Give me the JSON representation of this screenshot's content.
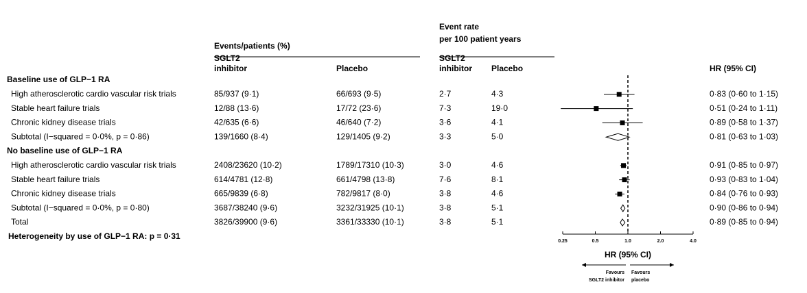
{
  "chart_data": {
    "type": "forest",
    "columns": {
      "events_title": "Events/patients (%)",
      "rate_title": [
        "Event rate",
        "per 100 patient years"
      ],
      "sglt2": [
        "SGLT2",
        "inhibitor"
      ],
      "placebo": "Placebo",
      "hr": "HR (95% CI)"
    },
    "rows": [
      {
        "kind": "section",
        "label": "Baseline use of GLP−1 RA"
      },
      {
        "kind": "study",
        "label": "High atherosclerotic cardio vascular risk trials",
        "events_sglt2": "85/937 (9·1)",
        "events_placebo": "66/693 (9·5)",
        "rate_sglt2": "2·7",
        "rate_placebo": "4·3",
        "hr": 0.83,
        "lo": 0.6,
        "hi": 1.15,
        "value_label": "0·83 (0·60 to 1·15)"
      },
      {
        "kind": "study",
        "label": "Stable heart failure trials",
        "events_sglt2": "12/88 (13·6)",
        "events_placebo": "17/72 (23·6)",
        "rate_sglt2": "7·3",
        "rate_placebo": "19·0",
        "hr": 0.51,
        "lo": 0.24,
        "hi": 1.11,
        "value_label": "0·51 (0·24 to 1·11)"
      },
      {
        "kind": "study",
        "label": "Chronic kidney disease trials",
        "events_sglt2": "42/635 (6·6)",
        "events_placebo": "46/640 (7·2)",
        "rate_sglt2": "3·6",
        "rate_placebo": "4·1",
        "hr": 0.89,
        "lo": 0.58,
        "hi": 1.37,
        "value_label": "0·89 (0·58 to 1·37)"
      },
      {
        "kind": "summary",
        "label": "Subtotal (I−squared = 0·0%, p = 0·86)",
        "events_sglt2": "139/1660 (8·4)",
        "events_placebo": "129/1405 (9·2)",
        "rate_sglt2": "3·3",
        "rate_placebo": "5·0",
        "hr": 0.81,
        "lo": 0.63,
        "hi": 1.03,
        "value_label": "0·81 (0·63 to 1·03)"
      },
      {
        "kind": "section",
        "label": "No baseline use of GLP−1 RA"
      },
      {
        "kind": "study",
        "label": "High atherosclerotic cardio vascular risk trials",
        "events_sglt2": "2408/23620 (10·2)",
        "events_placebo": "1789/17310 (10·3)",
        "rate_sglt2": "3·0",
        "rate_placebo": "4·6",
        "hr": 0.91,
        "lo": 0.85,
        "hi": 0.97,
        "value_label": "0·91 (0·85 to 0·97)"
      },
      {
        "kind": "study",
        "label": "Stable heart failure trials",
        "events_sglt2": "614/4781 (12·8)",
        "events_placebo": "661/4798 (13·8)",
        "rate_sglt2": "7·6",
        "rate_placebo": "8·1",
        "hr": 0.93,
        "lo": 0.83,
        "hi": 1.04,
        "value_label": "0·93 (0·83 to 1·04)"
      },
      {
        "kind": "study",
        "label": "Chronic kidney disease trials",
        "events_sglt2": "665/9839 (6·8)",
        "events_placebo": "782/9817 (8·0)",
        "rate_sglt2": "3·8",
        "rate_placebo": "4·6",
        "hr": 0.84,
        "lo": 0.76,
        "hi": 0.93,
        "value_label": "0·84 (0·76 to 0·93)"
      },
      {
        "kind": "summary",
        "label": "Subtotal (I−squared = 0·0%, p = 0·80)",
        "events_sglt2": "3687/38240 (9·6)",
        "events_placebo": "3232/31925 (10·1)",
        "rate_sglt2": "3·8",
        "rate_placebo": "5·1",
        "hr": 0.9,
        "lo": 0.86,
        "hi": 0.94,
        "value_label": "0·90 (0·86 to 0·94)"
      },
      {
        "kind": "summary",
        "label": "Total",
        "events_sglt2": "3826/39900 (9·6)",
        "events_placebo": "3361/33330 (10·1)",
        "rate_sglt2": "3·8",
        "rate_placebo": "5·1",
        "hr": 0.89,
        "lo": 0.85,
        "hi": 0.94,
        "value_label": "0·89 (0·85 to 0·94)"
      }
    ],
    "footnote": "Heterogeneity by use of GLP−1 RA: p = 0·31",
    "xlabel": "HR (95% CI)",
    "xscale": "log",
    "xlim": [
      0.25,
      4
    ],
    "xticks": [
      0.25,
      0.5,
      {
        "value": 1,
        "label": "1.0"
      },
      {
        "value": 2,
        "label": "2.0"
      },
      {
        "value": 4,
        "label": "4.0"
      }
    ],
    "reference_line": 1,
    "favours_left": [
      "Favours",
      "SGLT2 inhibitor"
    ],
    "favours_right": [
      "Favours",
      "placebo"
    ]
  }
}
